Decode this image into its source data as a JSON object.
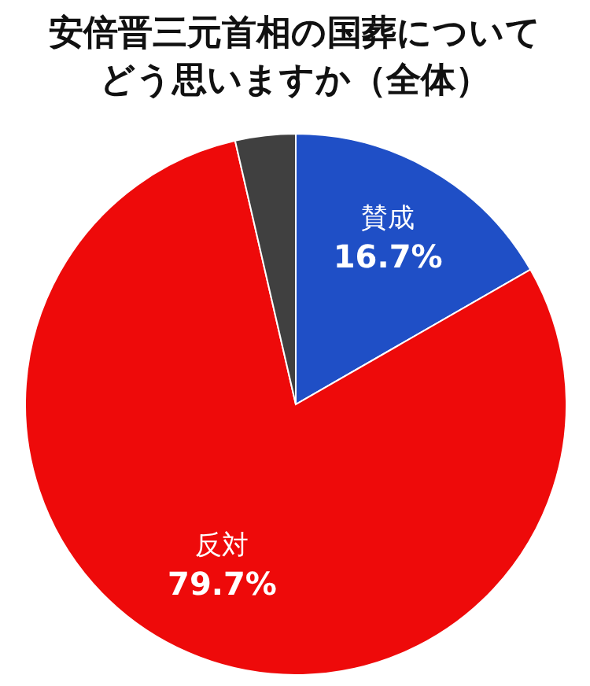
{
  "chart_data": {
    "type": "pie",
    "title": "安倍晋三元首相の国葬についてどう思いますか（全体）",
    "categories": [
      "賛成",
      "反対",
      null
    ],
    "values": [
      16.7,
      79.7,
      3.6
    ],
    "colors": [
      "#1f4fc6",
      "#ee0a0a",
      "#404040"
    ],
    "value_labels": [
      "16.7%",
      "79.7%",
      null
    ],
    "legend": false
  }
}
